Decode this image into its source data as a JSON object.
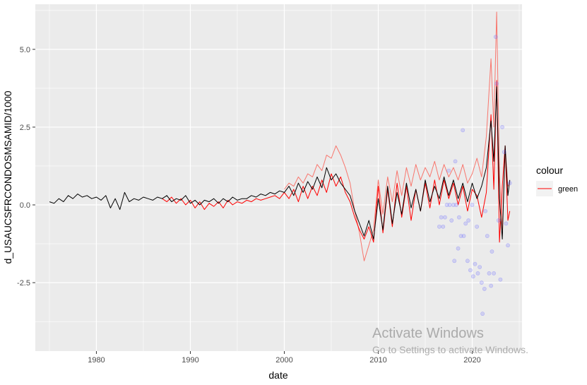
{
  "watermark": {
    "title": "Activate Windows",
    "subtitle": "Go to Settings to activate Windows."
  },
  "chart_data": {
    "type": "line",
    "xlabel": "date",
    "ylabel": "d_USAUCSFRCONDOSMSAMID/1000",
    "xlim": [
      1973.5,
      2025.3
    ],
    "ylim": [
      -4.7,
      6.45
    ],
    "x_ticks": [
      1980,
      1990,
      2000,
      2010,
      2020
    ],
    "y_ticks": [
      -2.5,
      0.0,
      2.5,
      5.0
    ],
    "y_tick_labels": [
      "-2.5",
      "0.0",
      "2.5",
      "5.0"
    ],
    "grid": true,
    "legend": {
      "title": "colour",
      "placement": "right",
      "entries": [
        "green"
      ]
    },
    "colors": {
      "panel": "#EBEBEB",
      "grid": "#FFFFFF",
      "black": "#000000",
      "red": "#FF0000",
      "light_red": "#F8766D",
      "points": "#6E6EFF"
    },
    "series": [
      {
        "color": "#000000",
        "x": [
          1975.0,
          1975.5,
          1976.0,
          1976.5,
          1977.0,
          1977.5,
          1978.0,
          1978.5,
          1979.0,
          1979.5,
          1980.0,
          1980.5,
          1981.0,
          1981.5,
          1982.0,
          1982.5,
          1983.0,
          1983.5,
          1984.0,
          1984.5,
          1985.0,
          1985.5,
          1986.0,
          1986.5,
          1987.0,
          1987.5,
          1988.0,
          1988.5,
          1989.0,
          1989.5,
          1990.0,
          1990.5,
          1991.0,
          1991.5,
          1992.0,
          1992.5,
          1993.0,
          1993.5,
          1994.0,
          1994.5,
          1995.0,
          1995.5,
          1996.0,
          1996.5,
          1997.0,
          1997.5,
          1998.0,
          1998.5,
          1999.0,
          1999.5,
          2000.0,
          2000.5,
          2001.0,
          2001.5,
          2002.0,
          2002.5,
          2003.0,
          2003.5,
          2004.0,
          2004.5,
          2005.0,
          2005.5,
          2006.0,
          2006.5,
          2007.0,
          2007.5,
          2008.0,
          2008.5,
          2009.0,
          2009.5,
          2010.0,
          2010.5,
          2011.0,
          2011.5,
          2012.0,
          2012.5,
          2013.0,
          2013.5,
          2014.0,
          2014.5,
          2015.0,
          2015.5,
          2016.0,
          2016.5,
          2017.0,
          2017.5,
          2018.0,
          2018.5,
          2019.0,
          2019.5,
          2020.0,
          2020.5,
          2021.0,
          2021.5,
          2022.0,
          2022.3,
          2022.6,
          2022.9,
          2023.2,
          2023.5,
          2023.8,
          2024.0
        ],
        "y": [
          0.1,
          0.05,
          0.2,
          0.1,
          0.3,
          0.2,
          0.35,
          0.25,
          0.3,
          0.2,
          0.25,
          0.15,
          0.3,
          -0.1,
          0.2,
          -0.15,
          0.4,
          0.1,
          0.2,
          0.15,
          0.25,
          0.2,
          0.15,
          0.25,
          0.2,
          0.3,
          0.1,
          0.2,
          0.15,
          0.3,
          0.05,
          0.15,
          0.0,
          0.15,
          0.1,
          0.2,
          0.05,
          0.2,
          0.1,
          0.25,
          0.15,
          0.2,
          0.2,
          0.3,
          0.25,
          0.35,
          0.3,
          0.4,
          0.35,
          0.45,
          0.4,
          0.6,
          0.3,
          0.7,
          0.4,
          0.75,
          0.5,
          0.9,
          0.55,
          1.2,
          0.8,
          1.0,
          0.7,
          0.5,
          0.3,
          -0.2,
          -0.6,
          -1.0,
          -0.5,
          -1.1,
          0.2,
          -0.8,
          0.6,
          -0.6,
          0.4,
          -0.3,
          0.7,
          -0.1,
          0.5,
          -0.2,
          0.8,
          0.1,
          0.6,
          0.2,
          0.9,
          0.3,
          0.8,
          0.2,
          0.7,
          0.1,
          0.7,
          0.2,
          0.6,
          1.2,
          2.7,
          1.4,
          3.8,
          0.2,
          -1.1,
          1.9,
          0.3,
          0.8
        ]
      },
      {
        "color": "#FF0000",
        "x": [
          1987.0,
          1987.5,
          1988.0,
          1988.5,
          1989.0,
          1989.5,
          1990.0,
          1990.5,
          1991.0,
          1991.5,
          1992.0,
          1992.5,
          1993.0,
          1993.5,
          1994.0,
          1994.5,
          1995.0,
          1995.5,
          1996.0,
          1996.5,
          1997.0,
          1997.5,
          1998.0,
          1998.5,
          1999.0,
          1999.5,
          2000.0,
          2000.5,
          2001.0,
          2001.5,
          2002.0,
          2002.5,
          2003.0,
          2003.5,
          2004.0,
          2004.5,
          2005.0,
          2005.5,
          2006.0,
          2006.5,
          2007.0,
          2007.5,
          2008.0,
          2008.5,
          2009.0,
          2009.5,
          2010.0,
          2010.5,
          2011.0,
          2011.5,
          2012.0,
          2012.5,
          2013.0,
          2013.5,
          2014.0,
          2014.5,
          2015.0,
          2015.5,
          2016.0,
          2016.5,
          2017.0,
          2017.5,
          2018.0,
          2018.5,
          2019.0,
          2019.5,
          2020.0,
          2020.5,
          2021.0,
          2021.5,
          2022.0,
          2022.3,
          2022.6,
          2022.9,
          2023.2,
          2023.5,
          2023.8,
          2024.0
        ],
        "y": [
          0.2,
          0.1,
          0.25,
          0.05,
          0.2,
          0.0,
          0.15,
          -0.1,
          0.1,
          -0.15,
          0.05,
          -0.05,
          0.1,
          -0.1,
          0.15,
          0.0,
          0.1,
          0.05,
          0.15,
          0.1,
          0.2,
          0.15,
          0.2,
          0.25,
          0.3,
          0.2,
          0.4,
          0.2,
          0.5,
          0.1,
          0.6,
          0.2,
          0.6,
          0.3,
          0.8,
          0.4,
          1.0,
          0.6,
          0.9,
          0.4,
          0.1,
          -0.4,
          -0.8,
          -1.1,
          -0.7,
          -1.2,
          0.6,
          -0.9,
          0.5,
          -0.7,
          0.7,
          -0.4,
          0.6,
          -0.5,
          0.5,
          -0.2,
          0.7,
          -0.1,
          0.8,
          0.0,
          0.8,
          0.2,
          0.7,
          0.0,
          0.6,
          -0.2,
          0.5,
          0.3,
          -0.4,
          0.4,
          2.9,
          0.5,
          4.0,
          -1.2,
          0.6,
          1.9,
          -0.5,
          -0.2
        ]
      },
      {
        "color": "#F8766D",
        "x": [
          2000.0,
          2000.5,
          2001.0,
          2001.5,
          2002.0,
          2002.5,
          2003.0,
          2003.5,
          2004.0,
          2004.5,
          2005.0,
          2005.5,
          2006.0,
          2006.5,
          2007.0,
          2007.5,
          2008.0,
          2008.5,
          2009.0,
          2009.5,
          2010.0,
          2010.5,
          2011.0,
          2011.5,
          2012.0,
          2012.5,
          2013.0,
          2013.5,
          2014.0,
          2014.5,
          2015.0,
          2015.5,
          2016.0,
          2016.5,
          2017.0,
          2017.5,
          2018.0,
          2018.5,
          2019.0,
          2019.5,
          2020.0,
          2020.5,
          2021.0,
          2021.5,
          2022.0,
          2022.3,
          2022.6,
          2022.9,
          2023.2,
          2023.5,
          2023.8,
          2024.0
        ],
        "y": [
          0.5,
          0.7,
          0.6,
          0.9,
          0.7,
          1.0,
          0.9,
          1.3,
          1.1,
          1.6,
          1.5,
          1.9,
          1.6,
          1.2,
          0.7,
          -0.2,
          -0.9,
          -1.8,
          -1.3,
          -0.8,
          0.8,
          -0.3,
          0.9,
          0.1,
          1.1,
          0.3,
          1.2,
          0.6,
          1.3,
          0.8,
          1.2,
          0.9,
          1.4,
          0.8,
          1.3,
          0.9,
          1.2,
          0.8,
          1.3,
          0.7,
          1.0,
          1.5,
          0.9,
          2.2,
          4.7,
          2.5,
          6.2,
          1.0,
          -0.8,
          1.9,
          0.6,
          0.7
        ]
      }
    ],
    "points": {
      "color": "#6E6EFF",
      "x": [
        2016.5,
        2016.7,
        2016.9,
        2017.1,
        2017.3,
        2017.5,
        2017.6,
        2017.8,
        2018.0,
        2018.1,
        2018.2,
        2018.3,
        2018.5,
        2018.6,
        2018.8,
        2019.0,
        2019.1,
        2019.3,
        2019.5,
        2019.6,
        2019.8,
        2020.0,
        2020.1,
        2020.3,
        2020.5,
        2020.6,
        2020.8,
        2021.0,
        2021.1,
        2021.3,
        2021.4,
        2021.6,
        2021.8,
        2022.0,
        2022.1,
        2022.3,
        2022.5,
        2022.6,
        2022.8,
        2023.0,
        2023.2,
        2023.4,
        2023.6,
        2023.8,
        2024.0
      ],
      "y": [
        -0.7,
        -0.4,
        -0.7,
        -0.4,
        0.0,
        1.1,
        0.0,
        -0.5,
        0.0,
        -1.8,
        1.4,
        0.0,
        -1.4,
        -0.4,
        -1.0,
        2.4,
        -1.0,
        -0.6,
        -1.8,
        -0.5,
        -2.1,
        0.0,
        -2.3,
        -1.9,
        -0.7,
        -2.2,
        -2.0,
        -2.5,
        -3.5,
        -2.7,
        -0.2,
        -1.0,
        -2.2,
        -2.6,
        -1.5,
        -2.2,
        5.4,
        3.9,
        -0.5,
        -2.4,
        2.5,
        1.7,
        -0.6,
        -1.3,
        0.7
      ]
    }
  }
}
